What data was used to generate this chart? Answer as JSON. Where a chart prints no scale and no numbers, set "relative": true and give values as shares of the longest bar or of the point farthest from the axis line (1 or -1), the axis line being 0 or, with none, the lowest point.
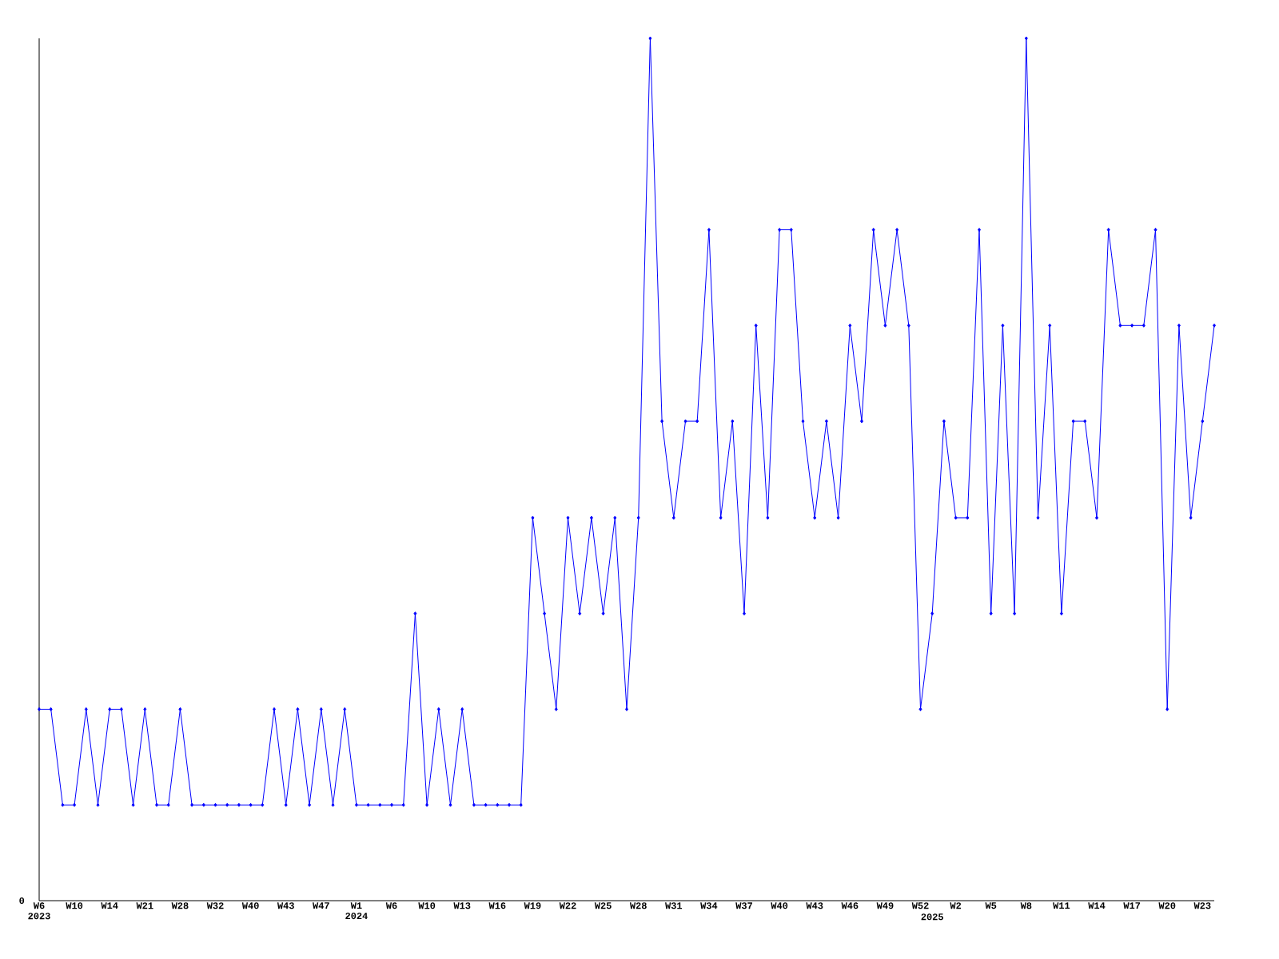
{
  "chart_data": {
    "type": "line",
    "relative": true,
    "color": "#0000ff",
    "marker": "diamond",
    "categories": [
      "W6 2023",
      null,
      null,
      "W10",
      null,
      null,
      "W14",
      null,
      null,
      "W21",
      null,
      null,
      "W28",
      null,
      null,
      "W32",
      null,
      null,
      "W40",
      null,
      null,
      "W43",
      null,
      null,
      "W47",
      null,
      null,
      "W1 2024",
      null,
      null,
      "W6",
      null,
      null,
      "W10",
      null,
      null,
      "W13",
      null,
      null,
      "W16",
      null,
      null,
      "W19",
      null,
      null,
      "W22",
      null,
      null,
      "W25",
      null,
      null,
      "W28",
      null,
      null,
      "W31",
      null,
      null,
      "W34",
      null,
      null,
      "W37",
      null,
      null,
      "W40",
      null,
      null,
      "W43",
      null,
      null,
      "W46",
      null,
      null,
      "W49",
      null,
      null,
      "W52",
      "2025",
      null,
      "W2",
      null,
      null,
      "W5",
      null,
      null,
      "W8",
      null,
      null,
      "W11",
      null,
      null,
      "W14",
      null,
      null,
      "W17",
      null,
      null,
      "W20",
      null,
      null,
      "W23",
      null
    ],
    "values": [
      0.222,
      0.222,
      0.111,
      0.111,
      0.222,
      0.111,
      0.222,
      0.222,
      0.111,
      0.222,
      0.111,
      0.111,
      0.222,
      0.111,
      0.111,
      0.111,
      0.111,
      0.111,
      0.111,
      0.111,
      0.222,
      0.111,
      0.222,
      0.111,
      0.222,
      0.111,
      0.222,
      0.111,
      0.111,
      0.111,
      0.111,
      0.111,
      0.333,
      0.111,
      0.222,
      0.111,
      0.222,
      0.111,
      0.111,
      0.111,
      0.111,
      0.111,
      0.444,
      0.333,
      0.222,
      0.444,
      0.333,
      0.444,
      0.333,
      0.444,
      0.222,
      0.444,
      1,
      0.556,
      0.444,
      0.556,
      0.556,
      0.778,
      0.444,
      0.556,
      0.333,
      0.667,
      0.444,
      0.778,
      0.778,
      0.556,
      0.444,
      0.556,
      0.444,
      0.667,
      0.556,
      0.778,
      0.667,
      0.778,
      0.667,
      0.222,
      0.333,
      0.556,
      0.444,
      0.444,
      0.778,
      0.333,
      0.667,
      0.333,
      1,
      0.444,
      0.667,
      0.333,
      0.556,
      0.556,
      0.444,
      0.778,
      0.667,
      0.667,
      0.667,
      0.778,
      0.222,
      0.667,
      0.444,
      0.556,
      0.667
    ],
    "annotations": [
      "0"
    ]
  }
}
